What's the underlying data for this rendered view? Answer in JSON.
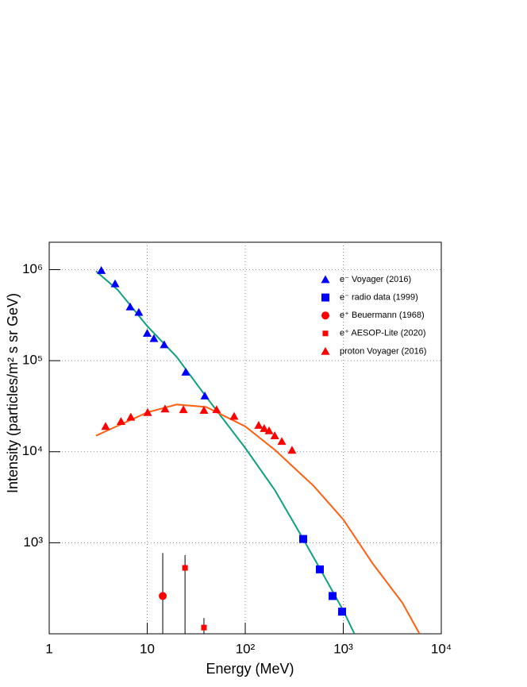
{
  "chart_data": {
    "type": "scatter",
    "xlabel": "Energy (MeV)",
    "ylabel": "Intensity (particles/m² s sr GeV)",
    "xlim": [
      1,
      10000
    ],
    "ylim": [
      100,
      2000000
    ],
    "log_x": true,
    "log_y": true,
    "grid": true,
    "legend": "upper right",
    "xticks": [
      1,
      10,
      {
        "value": 100,
        "label": "10²"
      },
      {
        "value": 1000,
        "label": "10³"
      },
      {
        "value": 10000,
        "label": "10⁴"
      }
    ],
    "yticks": [
      {
        "value": 1000,
        "label": "10³"
      },
      {
        "value": 10000,
        "label": "10⁴"
      },
      {
        "value": 100000,
        "label": "10⁵"
      },
      {
        "value": 1000000,
        "label": "10⁶"
      }
    ],
    "series": [
      {
        "name": "e⁻ Voyager (2016)",
        "color": "#0000ff",
        "marker": "triangle",
        "x": [
          3.4,
          4.7,
          6.7,
          8.2,
          10,
          11.7,
          14.9,
          24.7,
          38.7
        ],
        "values": [
          980000,
          700000,
          390000,
          340000,
          200000,
          175000,
          150000,
          75000,
          41000
        ]
      },
      {
        "name": "e⁻ radio data (1999)",
        "color": "#0000ff",
        "marker": "square",
        "x": [
          390,
          577,
          778,
          973
        ],
        "values": [
          1100,
          510,
          260,
          175
        ]
      },
      {
        "name": "e⁺ Beuermann (1968)",
        "color": "#ff0000",
        "marker": "circle",
        "x": [
          14.4
        ],
        "values": [
          260
        ],
        "err_low": [
          100
        ],
        "err_high": [
          770
        ]
      },
      {
        "name": "e⁺ AESOP-Lite (2020)",
        "color": "#ff0000",
        "marker": "small-square",
        "x": [
          24.3,
          37.9
        ],
        "values": [
          530,
          117
        ],
        "err_low": [
          100,
          100
        ],
        "err_high": [
          730,
          149
        ]
      },
      {
        "name": "proton Voyager (2016)",
        "color": "#ff0000",
        "marker": "triangle",
        "x": [
          3.76,
          5.4,
          6.8,
          10.1,
          15.2,
          23.4,
          37.9,
          51,
          77,
          137,
          156,
          175,
          200,
          236,
          300
        ],
        "values": [
          19000,
          21500,
          24000,
          27000,
          29500,
          29000,
          28500,
          29000,
          24500,
          19500,
          18000,
          17000,
          15000,
          13000,
          10400
        ]
      }
    ],
    "curves": [
      {
        "color": "#0fa080",
        "x": [
          3,
          5,
          10,
          20,
          40,
          100,
          200,
          400,
          700,
          1000,
          1300
        ],
        "values": [
          960000,
          600000,
          240000,
          110000,
          40000,
          11000,
          3800,
          1050,
          360,
          180,
          100
        ]
      },
      {
        "color": "#ff5f0f",
        "x": [
          3,
          10,
          20,
          40,
          100,
          200,
          500,
          1000,
          2000,
          4000,
          6000
        ],
        "values": [
          15000,
          27000,
          33000,
          31000,
          19000,
          10500,
          4200,
          1800,
          590,
          220,
          100
        ]
      }
    ]
  }
}
